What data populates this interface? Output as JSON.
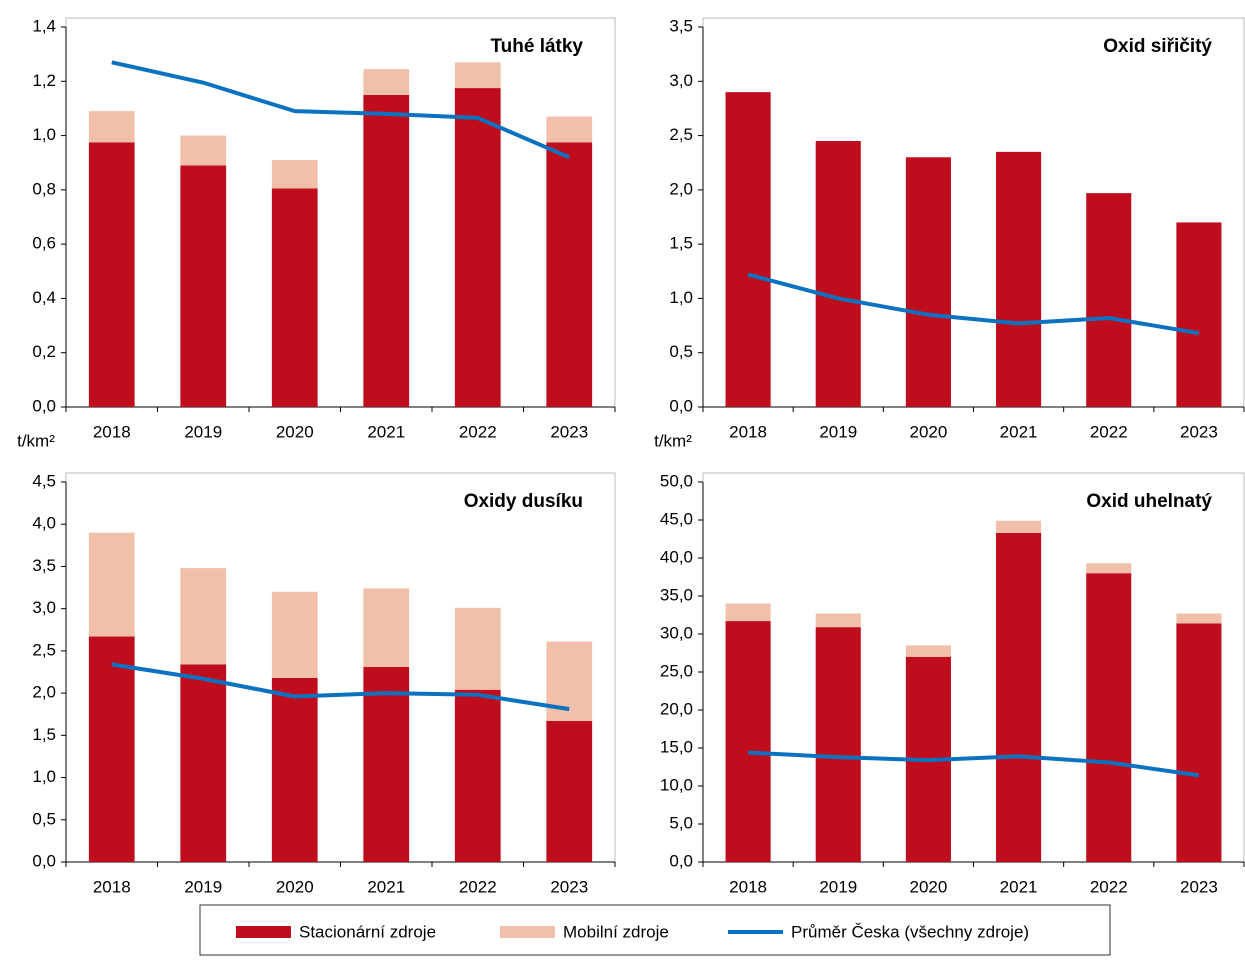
{
  "legend": [
    {
      "name": "Stacionární zdroje",
      "color": "#c00d1e"
    },
    {
      "name": "Mobilní zdroje",
      "color": "#f0c0aa"
    },
    {
      "name": "Průměr Česka (všechny zdroje)",
      "color": "#0a72c0"
    }
  ],
  "chart_data": [
    {
      "type": "bar",
      "stacked": true,
      "title": "Tuhé látky",
      "categories": [
        "2018",
        "2019",
        "2020",
        "2021",
        "2022",
        "2023"
      ],
      "series": [
        {
          "legend": 0,
          "values": [
            0.975,
            0.89,
            0.805,
            1.15,
            1.175,
            0.975
          ]
        },
        {
          "legend": 1,
          "values": [
            0.115,
            0.11,
            0.105,
            0.095,
            0.095,
            0.095
          ]
        },
        {
          "legend": 2,
          "type": "line",
          "values": [
            1.27,
            1.195,
            1.09,
            1.08,
            1.065,
            0.92
          ]
        }
      ],
      "ylim": [
        0,
        1.4
      ],
      "yticks": [
        {
          "value": 0,
          "label": "0,0"
        },
        {
          "value": 0.2,
          "label": "0,2"
        },
        {
          "value": 0.4,
          "label": "0,4"
        },
        {
          "value": 0.6,
          "label": "0,6"
        },
        {
          "value": 0.8,
          "label": "0,8"
        },
        {
          "value": 1.0,
          "label": "1,0"
        },
        {
          "value": 1.2,
          "label": "1,2"
        },
        {
          "value": 1.4,
          "label": "1,4"
        }
      ]
    },
    {
      "type": "bar",
      "stacked": true,
      "title": "Oxid siřičitý",
      "categories": [
        "2018",
        "2019",
        "2020",
        "2021",
        "2022",
        "2023"
      ],
      "series": [
        {
          "legend": 0,
          "values": [
            2.9,
            2.45,
            2.3,
            2.35,
            1.97,
            1.7
          ]
        },
        {
          "legend": 2,
          "type": "line",
          "values": [
            1.22,
            1.0,
            0.85,
            0.77,
            0.82,
            0.68
          ]
        }
      ],
      "ylim": [
        0,
        3.5
      ],
      "yticks": [
        {
          "value": 0,
          "label": "0,0"
        },
        {
          "value": 0.5,
          "label": "0,5"
        },
        {
          "value": 1.0,
          "label": "1,0"
        },
        {
          "value": 1.5,
          "label": "1,5"
        },
        {
          "value": 2.0,
          "label": "2,0"
        },
        {
          "value": 2.5,
          "label": "2,5"
        },
        {
          "value": 3.0,
          "label": "3,0"
        },
        {
          "value": 3.5,
          "label": "3,5"
        }
      ]
    },
    {
      "type": "bar",
      "stacked": true,
      "title": "Oxidy dusíku",
      "ylabel": "t/km²",
      "categories": [
        "2018",
        "2019",
        "2020",
        "2021",
        "2022",
        "2023"
      ],
      "series": [
        {
          "legend": 0,
          "values": [
            2.67,
            2.34,
            2.18,
            2.31,
            2.04,
            1.67
          ]
        },
        {
          "legend": 1,
          "values": [
            1.23,
            1.14,
            1.02,
            0.93,
            0.97,
            0.94
          ]
        },
        {
          "legend": 2,
          "type": "line",
          "values": [
            2.34,
            2.17,
            1.96,
            2.0,
            1.98,
            1.81
          ]
        }
      ],
      "ylim": [
        0,
        4.5
      ],
      "yticks": [
        {
          "value": 0,
          "label": "0,0"
        },
        {
          "value": 0.5,
          "label": "0,5"
        },
        {
          "value": 1.0,
          "label": "1,0"
        },
        {
          "value": 1.5,
          "label": "1,5"
        },
        {
          "value": 2.0,
          "label": "2,0"
        },
        {
          "value": 2.5,
          "label": "2,5"
        },
        {
          "value": 3.0,
          "label": "3,0"
        },
        {
          "value": 3.5,
          "label": "3,5"
        },
        {
          "value": 4.0,
          "label": "4,0"
        },
        {
          "value": 4.5,
          "label": "4,5"
        }
      ]
    },
    {
      "type": "bar",
      "stacked": true,
      "title": "Oxid uhelnatý",
      "ylabel": "t/km²",
      "categories": [
        "2018",
        "2019",
        "2020",
        "2021",
        "2022",
        "2023"
      ],
      "series": [
        {
          "legend": 0,
          "values": [
            31.7,
            30.9,
            27.0,
            43.3,
            38.0,
            31.4
          ]
        },
        {
          "legend": 1,
          "values": [
            2.3,
            1.8,
            1.5,
            1.6,
            1.3,
            1.3
          ]
        },
        {
          "legend": 2,
          "type": "line",
          "values": [
            14.4,
            13.8,
            13.4,
            13.9,
            13.1,
            11.4
          ]
        }
      ],
      "ylim": [
        0,
        50
      ],
      "yticks": [
        {
          "value": 0,
          "label": "0,0"
        },
        {
          "value": 5,
          "label": "5,0"
        },
        {
          "value": 10,
          "label": "10,0"
        },
        {
          "value": 15,
          "label": "15,0"
        },
        {
          "value": 20,
          "label": "20,0"
        },
        {
          "value": 25,
          "label": "25,0"
        },
        {
          "value": 30,
          "label": "30,0"
        },
        {
          "value": 35,
          "label": "35,0"
        },
        {
          "value": 40,
          "label": "40,0"
        },
        {
          "value": 45,
          "label": "45,0"
        },
        {
          "value": 50,
          "label": "50,0"
        }
      ]
    }
  ]
}
